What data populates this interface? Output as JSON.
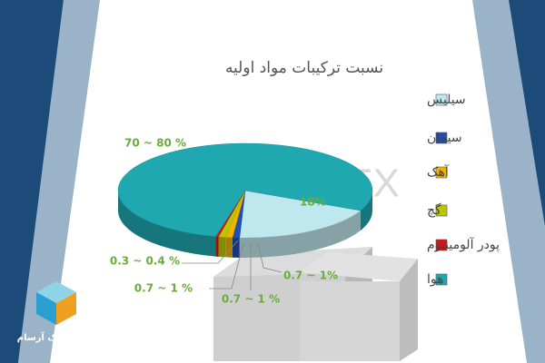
{
  "chart_data": {
    "type": "pie3d",
    "title": "نسبت ترکیبات مواد اولیه",
    "categories": [
      "سیلیس",
      "سیمان",
      "آهک",
      "گچ",
      "پودر آلومینیوم",
      "هوا"
    ],
    "values": [
      18,
      0.85,
      0.85,
      0.85,
      0.35,
      75
    ],
    "value_labels": [
      "18%",
      "0.7 ~ 1%",
      "0.7 ~ 1 %",
      "0.7 ~ 1 %",
      "0.3 ~ 0.4 %",
      "70 ~ 80 %"
    ],
    "colors": [
      "#bfe8ee",
      "#1f4fb5",
      "#f0b400",
      "#b8c800",
      "#d01818",
      "#1fa8b0"
    ],
    "watermark": "SIPOREX",
    "logo_text": "سازه سبک آرسام"
  }
}
